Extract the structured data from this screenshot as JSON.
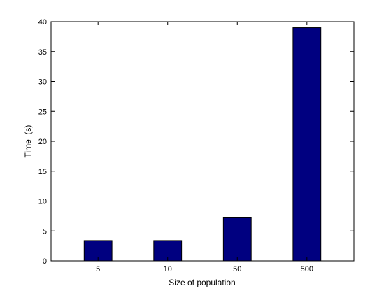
{
  "chart_data": {
    "type": "bar",
    "categories": [
      "5",
      "10",
      "50",
      "500"
    ],
    "values": [
      3.4,
      3.4,
      7.2,
      39
    ],
    "xlabel": "Size of population",
    "ylabel": "Time  (s)",
    "ylim": [
      0,
      40
    ],
    "yticks": [
      0,
      5,
      10,
      15,
      20,
      25,
      30,
      35,
      40
    ],
    "grid": false,
    "bar_color": "#000080",
    "axis_color": "#000000"
  }
}
